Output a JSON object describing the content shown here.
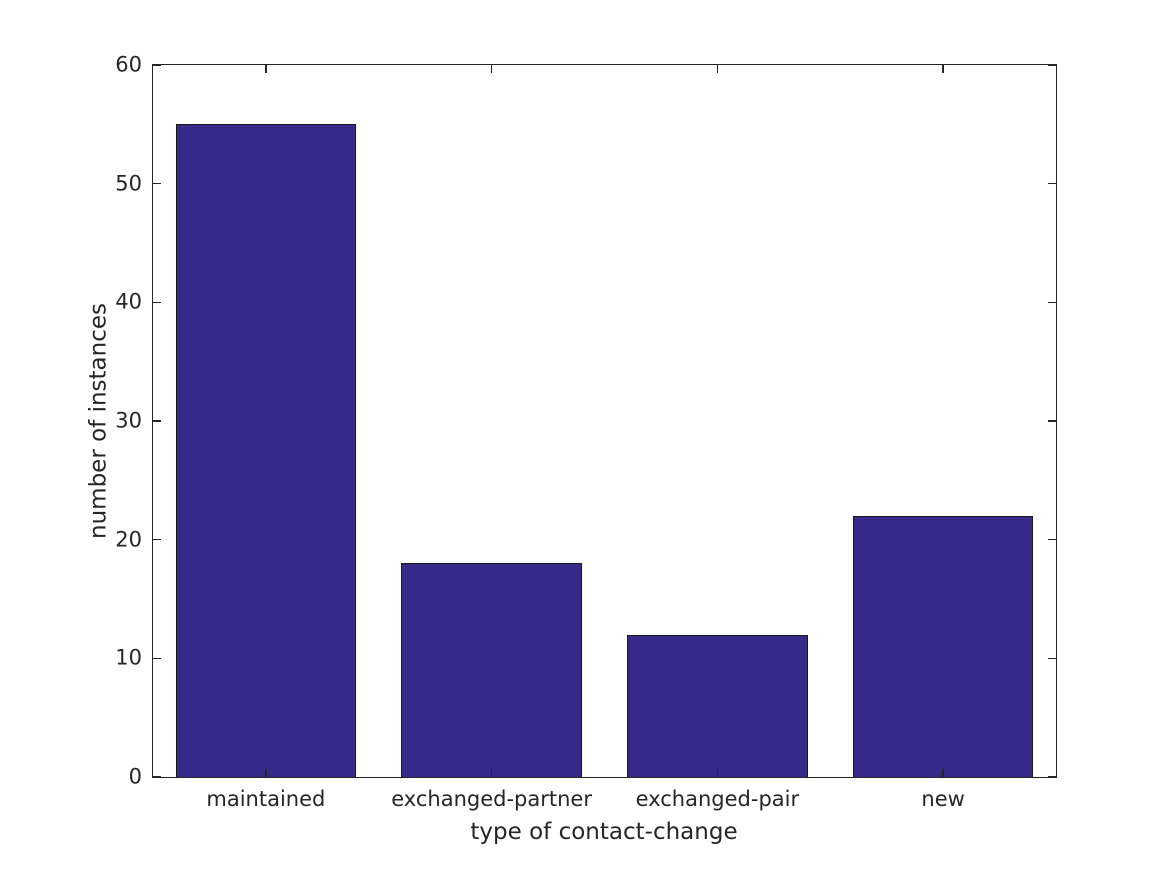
{
  "chart_data": {
    "type": "bar",
    "title": "",
    "categories": [
      "maintained",
      "exchanged-partner",
      "exchanged-pair",
      "new"
    ],
    "values": [
      55,
      18,
      12,
      22
    ],
    "xlabel": "type of contact-change",
    "ylabel": "number of instances",
    "ylim": [
      0,
      60
    ],
    "yticks": [
      0,
      10,
      20,
      30,
      40,
      50,
      60
    ],
    "bar_width_fraction": 0.8,
    "grid": false,
    "legend": null,
    "colors": {
      "bar_fill": "#352a87",
      "bar_edge": "#1a1a1a",
      "axis": "#262626",
      "text": "#262626",
      "background": "#ffffff"
    }
  }
}
